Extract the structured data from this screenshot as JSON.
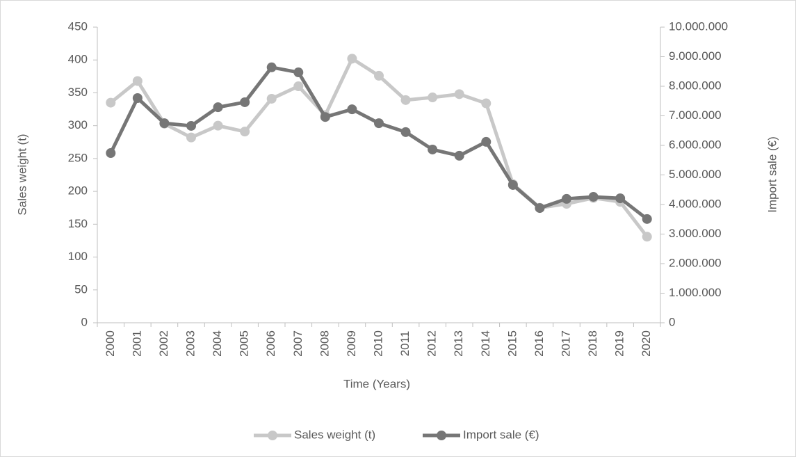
{
  "chart_data": {
    "type": "line",
    "x_label": "Time (Years)",
    "y_label": "Sales weight (t)",
    "y2_label": "Import sale (€)",
    "categories": [
      "2000",
      "2001",
      "2002",
      "2003",
      "2004",
      "2005",
      "2006",
      "2007",
      "2008",
      "2009",
      "2010",
      "2011",
      "2012",
      "2013",
      "2014",
      "2015",
      "2016",
      "2017",
      "2018",
      "2019",
      "2020"
    ],
    "series": [
      {
        "name": "Sales weight (t)",
        "color": "#c8c8c8",
        "values": [
          335,
          368,
          303,
          282,
          300,
          291,
          341,
          360,
          316,
          402,
          376,
          339,
          343,
          348,
          334,
          211,
          175,
          181,
          190,
          184,
          131
        ]
      },
      {
        "name": "Import sale (€)",
        "color": "#767676",
        "axis": "y2",
        "values": [
          5740000,
          7600000,
          6750000,
          6660000,
          7290000,
          7460000,
          8640000,
          8470000,
          6960000,
          7220000,
          6750000,
          6450000,
          5860000,
          5650000,
          6120000,
          4660000,
          3880000,
          4190000,
          4260000,
          4210000,
          3510000
        ]
      }
    ],
    "ylim": [
      0,
      450
    ],
    "yticks": [
      0,
      50,
      100,
      150,
      200,
      250,
      300,
      350,
      400,
      450
    ],
    "y2lim": [
      0,
      10000000
    ],
    "y2ticks": [
      0,
      {
        "value": 1000000,
        "label": "1.000.000"
      },
      {
        "value": 2000000,
        "label": "2.000.000"
      },
      {
        "value": 3000000,
        "label": "3.000.000"
      },
      {
        "value": 4000000,
        "label": "4.000.000"
      },
      {
        "value": 5000000,
        "label": "5.000.000"
      },
      {
        "value": 6000000,
        "label": "6.000.000"
      },
      {
        "value": 7000000,
        "label": "7.000.000"
      },
      {
        "value": 8000000,
        "label": "8.000.000"
      },
      {
        "value": 9000000,
        "label": "9.000.000"
      },
      {
        "value": 10000000,
        "label": "10.000.000"
      }
    ],
    "grid": false,
    "legend": "bottom"
  }
}
